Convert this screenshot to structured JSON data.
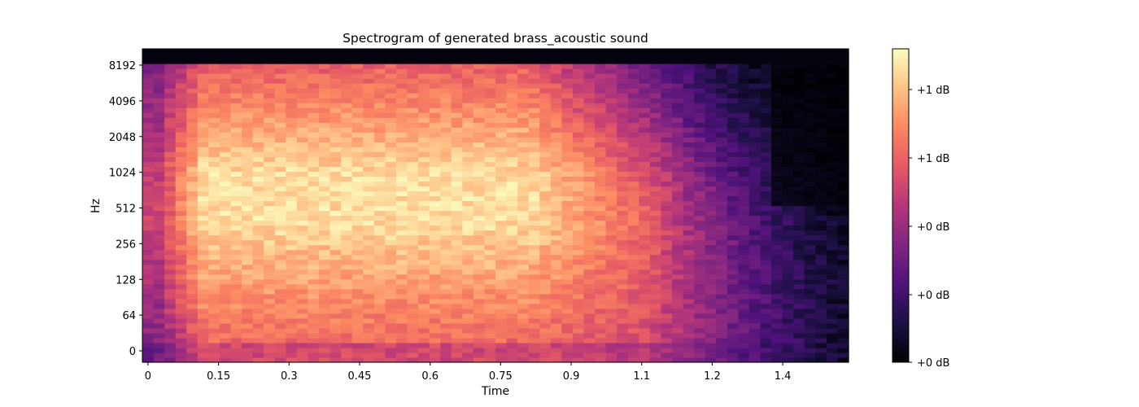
{
  "chart_data": {
    "type": "heatmap",
    "title": "Spectrogram of generated brass_acoustic sound",
    "xlabel": "Time",
    "ylabel": "Hz",
    "x_ticks": [
      "0",
      "0.15",
      "0.3",
      "0.45",
      "0.6",
      "0.75",
      "0.9",
      "1.1",
      "1.2",
      "1.4"
    ],
    "x_tick_values": [
      0,
      0.15,
      0.3,
      0.45,
      0.6,
      0.75,
      0.9,
      1.05,
      1.2,
      1.35
    ],
    "xlim": [
      -0.012,
      1.49
    ],
    "y_ticks": [
      "0",
      "64",
      "128",
      "256",
      "512",
      "1024",
      "2048",
      "4096",
      "8192"
    ],
    "y_scale": "log2 (mel-like)",
    "colorbar": {
      "colormap": "magma",
      "labels": [
        "+1 dB",
        "+1 dB",
        "+0 dB",
        "+0 dB",
        "+0 dB"
      ]
    },
    "grid": false,
    "description_of_values": "intensity 0..1; bright (loud) from ~0.08s to ~1.1s across 64–4096 Hz, peak near 512–1024 Hz at ~0.3s, fading above 1.1s and at top band (~8192 Hz+)",
    "n_time_frames": 64,
    "n_freq_bins": 64
  },
  "colors": {
    "magma_stops": [
      "#000004",
      "#1c1044",
      "#4f127b",
      "#812581",
      "#b5367a",
      "#e55964",
      "#fb8761",
      "#fec287",
      "#fcfdbf"
    ]
  }
}
